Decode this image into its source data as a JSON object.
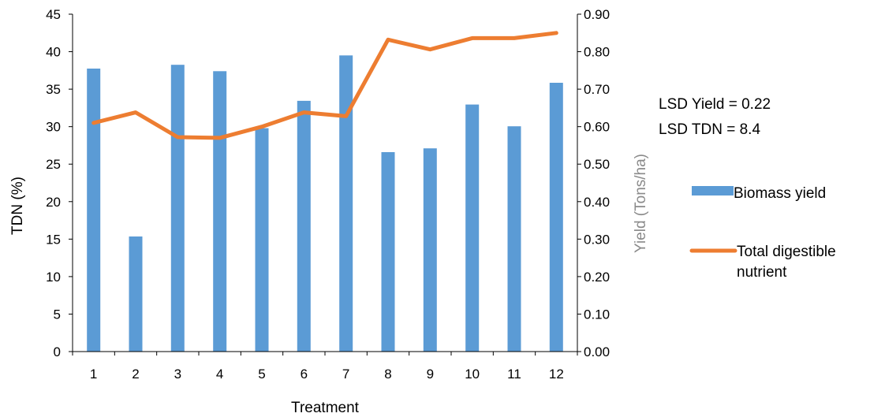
{
  "chart_data": {
    "type": "bar+line",
    "categories": [
      "1",
      "2",
      "3",
      "4",
      "5",
      "6",
      "7",
      "8",
      "9",
      "10",
      "11",
      "12"
    ],
    "xlabel": "Treatment",
    "ylabel_left": "TDN (%)",
    "ylabel_right": "Yield (Tons/ha)",
    "ylim_left": [
      0,
      45
    ],
    "ylim_right": [
      0,
      0.9
    ],
    "yticks_left": [
      "0",
      "5",
      "10",
      "15",
      "20",
      "25",
      "30",
      "35",
      "40",
      "45"
    ],
    "yticks_right": [
      "0.00",
      "0.10",
      "0.20",
      "0.30",
      "0.40",
      "0.50",
      "0.60",
      "0.70",
      "0.80",
      "0.90"
    ],
    "series": [
      {
        "name": "Biomass yield",
        "type": "bar",
        "axis": "right",
        "color": "#5b9bd5",
        "values": [
          0.755,
          0.307,
          0.765,
          0.748,
          0.596,
          0.669,
          0.79,
          0.532,
          0.542,
          0.659,
          0.601,
          0.717
        ]
      },
      {
        "name": "Total digestible nutrient",
        "name_lines": [
          "Total digestible",
          "nutrient"
        ],
        "type": "line",
        "axis": "left",
        "color": "#ed7d31",
        "values": [
          30.5,
          31.9,
          28.6,
          28.5,
          30.0,
          31.9,
          31.4,
          41.6,
          40.3,
          41.8,
          41.8,
          42.5
        ]
      }
    ],
    "annotations": [
      "LSD Yield = 0.22",
      "LSD TDN = 8.4"
    ],
    "grid": false,
    "legend_position": "right"
  }
}
